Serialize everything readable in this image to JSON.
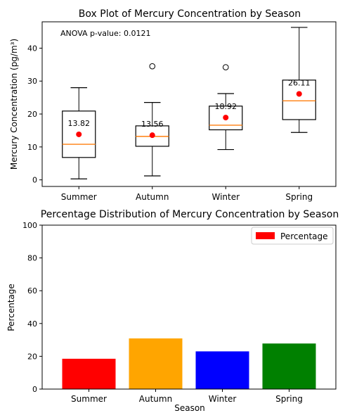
{
  "chart_data": [
    {
      "type": "box",
      "title": "Box Plot of Mercury Concentration by Season",
      "ylabel": "Mercury Concentration (pg/m³)",
      "xlabel": "",
      "annotation": "ANOVA p-value: 0.0121",
      "categories": [
        "Summer",
        "Autumn",
        "Winter",
        "Spring"
      ],
      "ylim": [
        -2,
        48
      ],
      "yticks": [
        0,
        10,
        20,
        30,
        40
      ],
      "grid": false,
      "boxes": [
        {
          "min": 0.3,
          "q1": 6.8,
          "median": 10.8,
          "q3": 20.9,
          "max": 28.0,
          "outliers": [],
          "mean": 13.82
        },
        {
          "min": 1.2,
          "q1": 10.2,
          "median": 13.2,
          "q3": 16.4,
          "max": 23.5,
          "outliers": [
            34.5
          ],
          "mean": 13.56
        },
        {
          "min": 9.2,
          "q1": 15.2,
          "median": 16.6,
          "q3": 22.4,
          "max": 26.2,
          "outliers": [
            34.2
          ],
          "mean": 18.92
        },
        {
          "min": 14.4,
          "q1": 18.3,
          "median": 24.0,
          "q3": 30.3,
          "max": 46.3,
          "outliers": [],
          "mean": 26.11
        }
      ],
      "mean_labels": [
        "13.82",
        "13.56",
        "18.92",
        "26.11"
      ],
      "colors": {
        "box": "#000000",
        "median": "#ff7f0e",
        "mean": "#ff0000"
      }
    },
    {
      "type": "bar",
      "title": "Percentage Distribution of Mercury Concentration by Season",
      "xlabel": "Season",
      "ylabel": "Percentage",
      "categories": [
        "Summer",
        "Autumn",
        "Winter",
        "Spring"
      ],
      "values": [
        18.5,
        30.9,
        23.0,
        27.8
      ],
      "colors": [
        "#ff0000",
        "#ffa500",
        "#0000ff",
        "#008000"
      ],
      "ylim": [
        0,
        100
      ],
      "yticks": [
        0,
        20,
        40,
        60,
        80,
        100
      ],
      "legend": {
        "label": "Percentage",
        "color": "#ff0000",
        "position": "top-right"
      },
      "grid": false
    }
  ]
}
